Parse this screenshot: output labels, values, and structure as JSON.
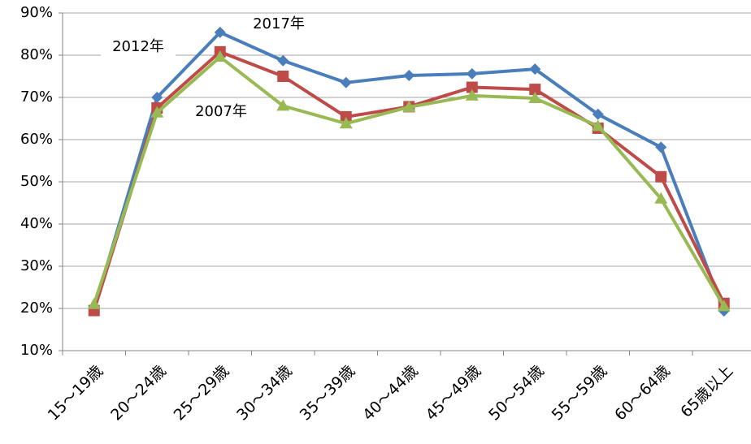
{
  "chart_data": {
    "type": "line",
    "categories": [
      "15～19歳",
      "20～24歳",
      "25～29歳",
      "30～34歳",
      "35～39歳",
      "40～44歳",
      "45～49歳",
      "50～54歳",
      "55～59歳",
      "60～64歳",
      "65歳以上"
    ],
    "series": [
      {
        "name": "2017年",
        "color": "#4a7ebb",
        "marker": "diamond",
        "values": [
          20,
          70,
          85.4,
          78.7,
          73.5,
          75.2,
          75.6,
          76.7,
          66,
          58.2,
          19.4
        ]
      },
      {
        "name": "2012年",
        "color": "#be4b48",
        "marker": "square",
        "values": [
          19.5,
          67.5,
          80.8,
          75,
          65.4,
          67.8,
          72.4,
          71.9,
          62.7,
          51.2,
          21.2
        ]
      },
      {
        "name": "2007年",
        "color": "#98b954",
        "marker": "triangle",
        "values": [
          21,
          66.4,
          79.6,
          68,
          63.8,
          67.7,
          70.4,
          69.8,
          63.2,
          46,
          20.5
        ]
      }
    ],
    "ylim": [
      10,
      90
    ],
    "yticks": [
      {
        "value": 10,
        "label": "10%"
      },
      {
        "value": 20,
        "label": "20%"
      },
      {
        "value": 30,
        "label": "30%"
      },
      {
        "value": 40,
        "label": "40%"
      },
      {
        "value": 50,
        "label": "50%"
      },
      {
        "value": 60,
        "label": "60%"
      },
      {
        "value": 70,
        "label": "70%"
      },
      {
        "value": 80,
        "label": "80%"
      },
      {
        "value": 90,
        "label": "90%"
      }
    ],
    "grid": true
  }
}
